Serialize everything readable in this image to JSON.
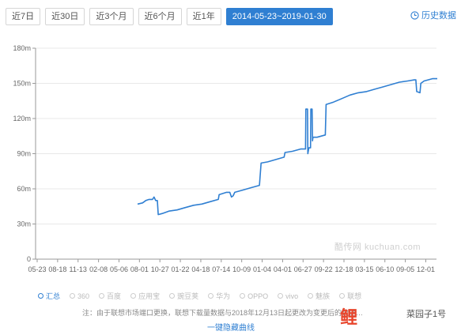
{
  "tabs": [
    {
      "label": "近7日",
      "active": false
    },
    {
      "label": "近30日",
      "active": false
    },
    {
      "label": "近3个月",
      "active": false
    },
    {
      "label": "近6个月",
      "active": false
    },
    {
      "label": "近1年",
      "active": false
    },
    {
      "label": "2014-05-23~2019-01-30",
      "active": true
    }
  ],
  "history_label": "历史数据",
  "accent_color": "#2f7fd2",
  "chart_data": {
    "type": "line",
    "title": "",
    "xlabel": "",
    "ylabel": "",
    "ylim": [
      0,
      180
    ],
    "yticks": [
      "0",
      "30m",
      "60m",
      "90m",
      "120m",
      "150m",
      "180m"
    ],
    "yticks_values": [
      0,
      30,
      60,
      90,
      120,
      150,
      180
    ],
    "xticks": [
      "05-23",
      "08-18",
      "11-13",
      "02-08",
      "05-06",
      "08-01",
      "10-27",
      "01-22",
      "04-18",
      "07-14",
      "10-09",
      "01-04",
      "04-01",
      "06-27",
      "09-22",
      "12-18",
      "03-15",
      "06-10",
      "09-05",
      "12-01"
    ],
    "grid": true,
    "series": [
      {
        "name": "汇总",
        "color": "#2f7fd2",
        "points": [
          [
            6.1,
            47
          ],
          [
            6.4,
            48
          ],
          [
            6.6,
            50
          ],
          [
            6.8,
            51
          ],
          [
            7.0,
            51
          ],
          [
            7.1,
            53
          ],
          [
            7.2,
            50
          ],
          [
            7.3,
            50
          ],
          [
            7.35,
            38
          ],
          [
            7.6,
            39
          ],
          [
            8.0,
            41
          ],
          [
            8.5,
            42
          ],
          [
            9.0,
            44
          ],
          [
            9.5,
            46
          ],
          [
            10.0,
            47
          ],
          [
            10.5,
            49
          ],
          [
            11.0,
            51
          ],
          [
            11.05,
            55
          ],
          [
            11.5,
            57
          ],
          [
            11.7,
            57
          ],
          [
            11.8,
            53
          ],
          [
            11.9,
            54
          ],
          [
            12.0,
            57
          ],
          [
            12.5,
            59
          ],
          [
            13.0,
            61
          ],
          [
            13.5,
            63
          ],
          [
            13.6,
            82
          ],
          [
            14.0,
            83
          ],
          [
            14.5,
            85
          ],
          [
            15.0,
            87
          ],
          [
            15.05,
            91
          ],
          [
            15.5,
            92
          ],
          [
            16.0,
            94
          ],
          [
            16.3,
            94
          ],
          [
            16.32,
            128
          ],
          [
            16.42,
            128
          ],
          [
            16.44,
            90
          ],
          [
            16.5,
            95
          ],
          [
            16.6,
            95
          ],
          [
            16.62,
            128
          ],
          [
            16.7,
            128
          ],
          [
            16.72,
            101
          ],
          [
            16.75,
            104
          ],
          [
            17.0,
            104
          ],
          [
            17.5,
            106
          ],
          [
            17.55,
            132
          ],
          [
            18.0,
            134
          ],
          [
            18.5,
            137
          ],
          [
            19.0,
            140
          ],
          [
            19.5,
            142
          ],
          [
            20.0,
            143
          ],
          [
            20.5,
            145
          ],
          [
            21.0,
            147
          ],
          [
            21.5,
            149
          ],
          [
            22.0,
            151
          ],
          [
            22.5,
            152
          ],
          [
            22.9,
            153
          ],
          [
            23.0,
            153
          ],
          [
            23.05,
            143
          ],
          [
            23.25,
            142
          ],
          [
            23.3,
            150
          ],
          [
            23.5,
            152
          ],
          [
            24.0,
            154
          ],
          [
            24.3,
            154
          ]
        ]
      }
    ]
  },
  "legend": [
    {
      "label": "汇总",
      "active": true
    },
    {
      "label": "360",
      "active": false
    },
    {
      "label": "百度",
      "active": false
    },
    {
      "label": "应用宝",
      "active": false
    },
    {
      "label": "豌豆荚",
      "active": false
    },
    {
      "label": "华为",
      "active": false
    },
    {
      "label": "OPPO",
      "active": false
    },
    {
      "label": "vivo",
      "active": false
    },
    {
      "label": "魅族",
      "active": false
    },
    {
      "label": "联想",
      "active": false
    }
  ],
  "note": "注：由于联想市场端口更换，联想下载量数据与2018年12月13日起更改为变更后的数据…",
  "toggle_label": "一键隐藏曲线",
  "watermark": "酷传网 kuchuan.com",
  "logo_text": "鲤",
  "logo_sub": "菜园子1号"
}
